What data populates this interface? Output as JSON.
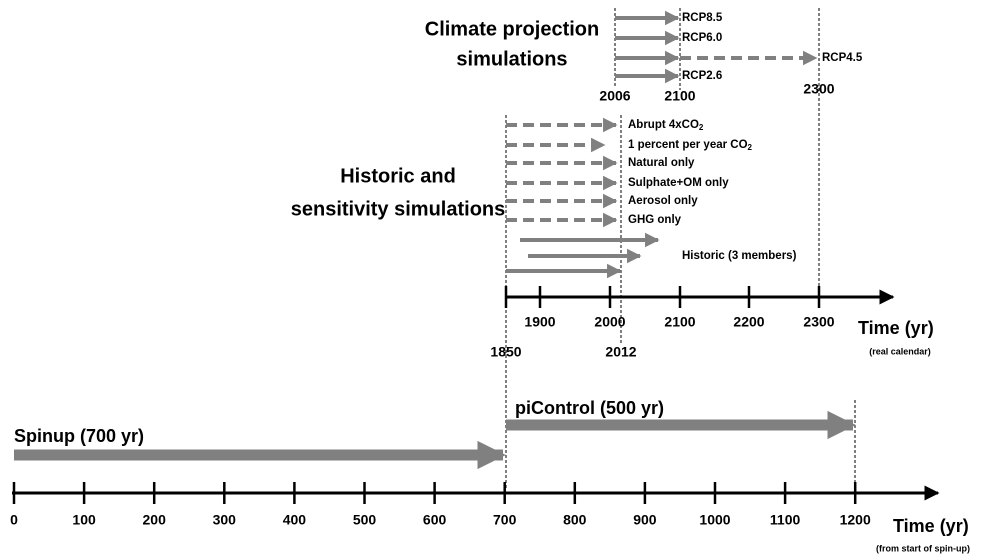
{
  "projection": {
    "title_lines": [
      "Climate projection",
      "simulations"
    ],
    "scenarios": [
      "RCP8.5",
      "RCP6.0",
      "RCP4.5",
      "RCP2.6"
    ],
    "years": [
      2006,
      2100,
      2300
    ]
  },
  "historic": {
    "title_lines": [
      "Historic and",
      "sensitivity simulations"
    ],
    "experiments": [
      {
        "text": "Abrupt 4xCO",
        "sub": "2"
      },
      {
        "text": "1 percent per year CO",
        "sub": "2"
      },
      {
        "text": "Natural only"
      },
      {
        "text": "Sulphate+OM only"
      },
      {
        "text": "Aerosol only"
      },
      {
        "text": "GHG only"
      }
    ],
    "historic_label": "Historic (3 members)"
  },
  "calendar_axis": {
    "ticks": [
      1900,
      2000,
      2100,
      2200,
      2300
    ],
    "markers": [
      1850,
      2012
    ],
    "title": "Time (yr)",
    "note": "(real calendar)"
  },
  "spinup_axis": {
    "ticks": [
      0,
      100,
      200,
      300,
      400,
      500,
      600,
      700,
      800,
      900,
      1000,
      1100,
      1200
    ],
    "title": "Time (yr)",
    "note": "(from start of spin-up)"
  },
  "spinup_label": "Spinup (700 yr)",
  "picontrol_label": "piControl (500 yr)"
}
